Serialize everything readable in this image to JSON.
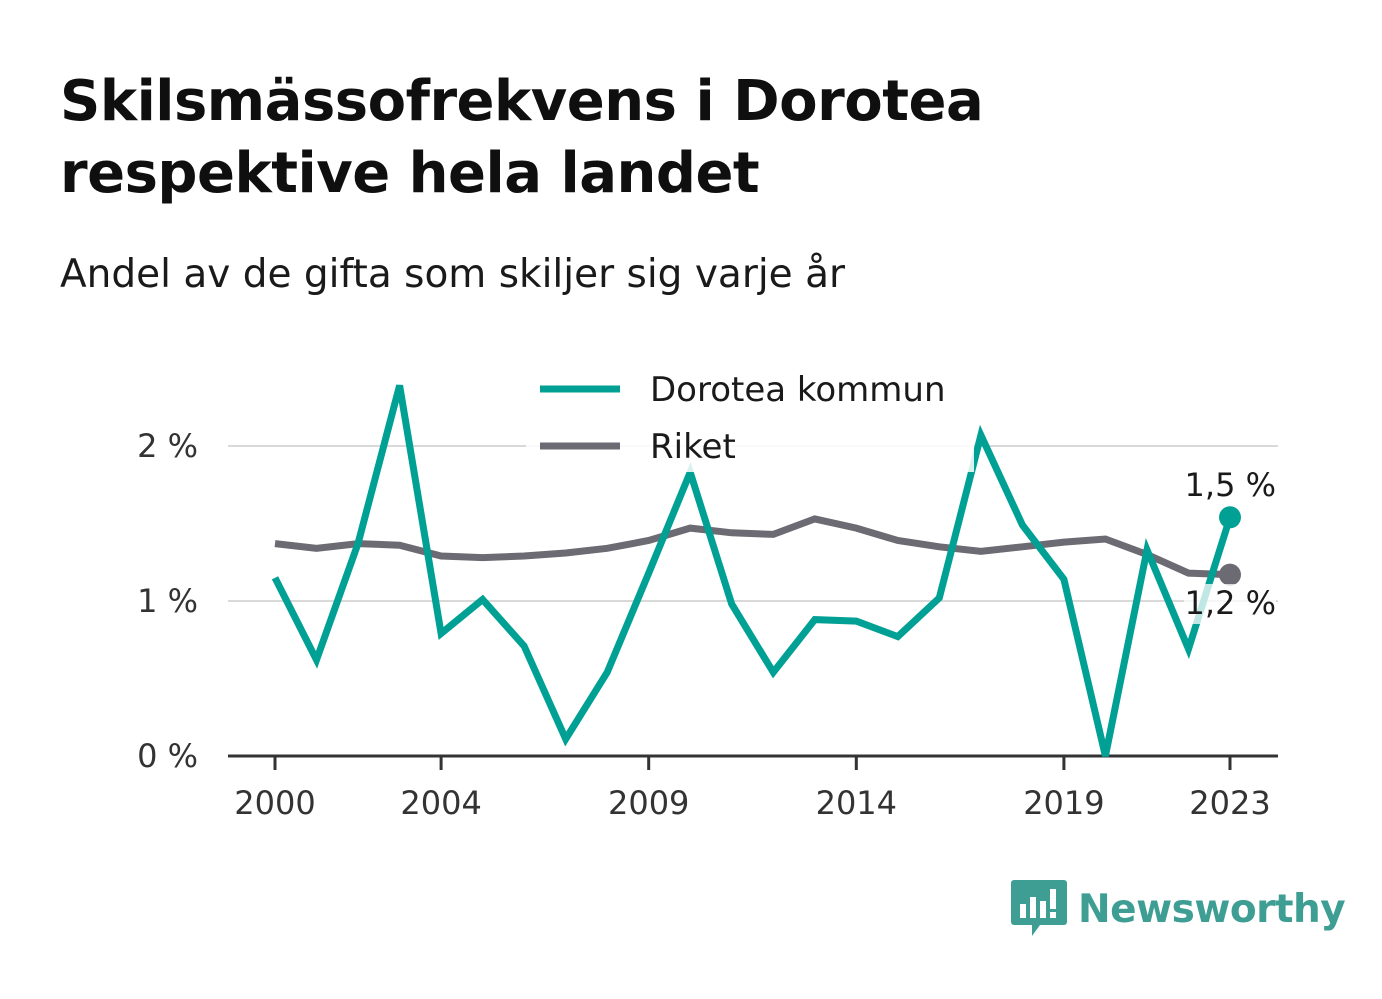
{
  "title": "Skilsmässofrekvens i Dorotea respektive hela landet",
  "subtitle": "Andel av de gifta som skiljer sig varje år",
  "brand": {
    "name": "Newsworthy",
    "icon": "newsworthy-logo-icon",
    "color": "#3f9e94"
  },
  "colors": {
    "dorotea": "#00a194",
    "riket": "#6c6a72",
    "grid": "#d9d9d9",
    "axis": "#333333"
  },
  "chart_data": {
    "type": "line",
    "x": [
      2000,
      2001,
      2002,
      2003,
      2004,
      2005,
      2006,
      2007,
      2008,
      2009,
      2010,
      2011,
      2012,
      2013,
      2014,
      2015,
      2016,
      2017,
      2018,
      2019,
      2020,
      2021,
      2022,
      2023
    ],
    "x_ticks": [
      2000,
      2004,
      2009,
      2014,
      2019,
      2023
    ],
    "y_ticks": [
      {
        "value": 0,
        "label": "0 %"
      },
      {
        "value": 1,
        "label": "1 %"
      },
      {
        "value": 2,
        "label": "2 %"
      }
    ],
    "ylim": [
      0,
      2.6
    ],
    "grid": true,
    "legend_position": "top",
    "series": [
      {
        "name": "Dorotea kommun",
        "color": "#00a194",
        "values": [
          1.15,
          0.62,
          1.37,
          2.39,
          0.79,
          1.01,
          0.71,
          0.11,
          0.54,
          1.18,
          1.83,
          0.98,
          0.54,
          0.88,
          0.87,
          0.77,
          1.02,
          2.07,
          1.49,
          1.14,
          0.0,
          1.33,
          0.69,
          1.54
        ],
        "end_label": "1,5 %"
      },
      {
        "name": "Riket",
        "color": "#6c6a72",
        "values": [
          1.37,
          1.34,
          1.37,
          1.36,
          1.29,
          1.28,
          1.29,
          1.31,
          1.34,
          1.39,
          1.47,
          1.44,
          1.43,
          1.53,
          1.47,
          1.39,
          1.35,
          1.32,
          1.35,
          1.38,
          1.4,
          1.3,
          1.18,
          1.17
        ],
        "end_label": "1,2 %"
      }
    ]
  }
}
